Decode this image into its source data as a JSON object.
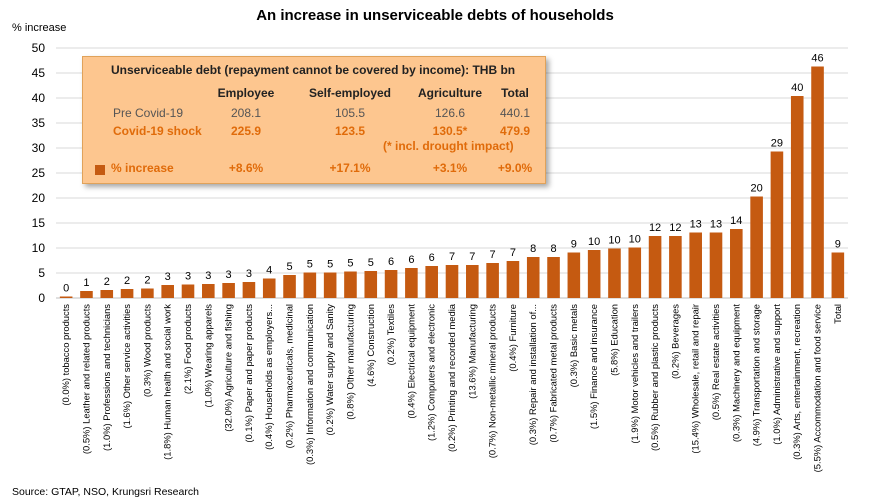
{
  "title": "An increase in unserviceable debts of households",
  "source": "Source: GTAP, NSO, Krungsri Research",
  "colors": {
    "bar": "#c55a11",
    "grid": "#d9d9d9",
    "box_bg": "#fdc68f",
    "highlight": "#e06b0a"
  },
  "info_box": {
    "heading": "Unserviceable debt (repayment cannot be covered by income): THB bn",
    "columns": [
      "Employee",
      "Self-employed",
      "Agriculture",
      "Total"
    ],
    "rows": [
      {
        "label": "Pre Covid-19",
        "values": [
          "208.1",
          "105.5",
          "126.6",
          "440.1"
        ]
      },
      {
        "label": "Covid-19 shock",
        "values": [
          "225.9",
          "123.5",
          "130.5*",
          "479.9"
        ]
      }
    ],
    "footnote": "(* incl. drought impact)",
    "increase": {
      "label": "% increase",
      "values": [
        "+8.6%",
        "+17.1%",
        "+3.1%",
        "+9.0%"
      ]
    }
  },
  "chart_data": {
    "type": "bar",
    "title": "An increase in unserviceable debts of households",
    "ylabel": "% increase",
    "xlabel": "",
    "ylim": [
      0,
      50
    ],
    "yticks": [
      0,
      5,
      10,
      15,
      20,
      25,
      30,
      35,
      40,
      45,
      50
    ],
    "grid": true,
    "categories": [
      "(0.0%) tobacco products",
      "(0.5%) Leather and related products",
      "(1.0%) Professions and technicians",
      "(1.6%) Other service activities",
      "(0.3%) Wood products",
      "(1.8%) Human health and social work",
      "(2.1%) Food products",
      "(1.0%) Wearing apparels",
      "(32.0%) Agriculture and fishing",
      "(0.1%) Paper and paper products",
      "(0.4%) Households as employers...",
      "(0.2%) Pharmaceuticals, medicinal",
      "(0.3%) Information and communication",
      "(0.2%) Water supply and Sanity",
      "(0.8%) Other manufacturing",
      "(4.6%) Construction",
      "(0.2%) Textiles",
      "(0.4%) Electrical equipment",
      "(1.2%) Computers and electronic",
      "(0.2%) Printing and recorded media",
      "(13.6%) Manufacturing",
      "(0.7%) Non-metallic mineral products",
      "(0.4%) Furniture",
      "(0.3%) Repair and installation of...",
      "(0.7%) Fabricated metal products",
      "(0.3%) Basic metals",
      "(1.5%) Finance and insurance",
      "(5.8%) Education",
      "(1.9%) Motor vehicles and trailers",
      "(0.5%) Rubber and plastic products",
      "(0.2%) Beverages",
      "(15.4%) Wholesale, retail and repair",
      "(0.5%) Real estate activities",
      "(0.3%) Machinery and equipment",
      "(4.9%) Transportation and storage",
      "(1.0%) Administrative and support",
      "(0.3%) Arts, entertainment, recreation",
      "(5.5%) Accommodation and food service",
      "Total"
    ],
    "values": [
      0.3,
      1.4,
      1.6,
      1.8,
      1.9,
      2.6,
      2.7,
      2.8,
      3.0,
      3.2,
      3.9,
      4.6,
      5.1,
      5.1,
      5.3,
      5.4,
      5.6,
      6.0,
      6.4,
      6.6,
      6.6,
      7.0,
      7.4,
      8.2,
      8.2,
      9.1,
      9.6,
      9.9,
      10.1,
      12.4,
      12.4,
      13.1,
      13.1,
      13.8,
      20.3,
      29.3,
      40.4,
      46.3,
      9.1
    ],
    "data_labels": [
      "0",
      "1",
      "2",
      "2",
      "2",
      "3",
      "3",
      "3",
      "3",
      "3",
      "4",
      "5",
      "5",
      "5",
      "5",
      "5",
      "6",
      "6",
      "6",
      "7",
      "7",
      "7",
      "7",
      "8",
      "8",
      "9",
      "10",
      "10",
      "10",
      "12",
      "12",
      "13",
      "13",
      "14",
      "20",
      "29",
      "40",
      "46",
      "9"
    ]
  }
}
